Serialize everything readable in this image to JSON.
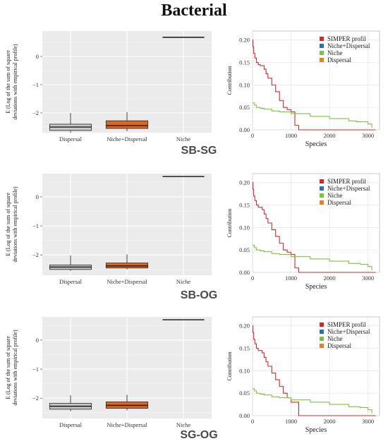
{
  "title": "Bacterial",
  "legend_labels": [
    "SIMPER profil",
    "Niche+Dispersal",
    "Niche",
    "Dispersal"
  ],
  "legend_colors": [
    "#d62728",
    "#2a6ebb",
    "#7cc242",
    "#e8801e"
  ],
  "box_fill_colors": {
    "Dispersal": "#c8c8c8",
    "Niche+Dispersal": "#e0661f"
  },
  "panels": [
    {
      "label": "SB-SG"
    },
    {
      "label": "SB-OG"
    },
    {
      "label": "SG-OG"
    }
  ],
  "chart_data": [
    {
      "type": "box",
      "panel": "SB-SG",
      "ylabel": "E (Log of the sum of square deviations with empirical profile)",
      "categories": [
        "Dispersal",
        "Niche+Dispersal",
        "Niche"
      ],
      "ylim": [
        -2.7,
        0.9
      ],
      "yticks": [
        0,
        -1,
        -2
      ],
      "boxes": [
        {
          "category": "Dispersal",
          "whisker_low": -2.7,
          "q1": -2.62,
          "median": -2.5,
          "q3": -2.4,
          "whisker_high": -2.0
        },
        {
          "category": "Niche+Dispersal",
          "whisker_low": -2.65,
          "q1": -2.55,
          "median": -2.45,
          "q3": -2.28,
          "whisker_high": -1.97
        },
        {
          "category": "Niche",
          "whisker_low": 0.68,
          "q1": 0.68,
          "median": 0.68,
          "q3": 0.68,
          "whisker_high": 0.68
        }
      ]
    },
    {
      "type": "line",
      "panel": "SB-SG",
      "xlabel": "Species",
      "ylabel": "Contribution",
      "xlim": [
        0,
        3300
      ],
      "ylim": [
        0,
        0.22
      ],
      "xticks": [
        0,
        1000,
        2000,
        3000
      ],
      "yticks": [
        0.0,
        0.05,
        0.1,
        0.15,
        0.2
      ],
      "series": [
        {
          "name": "SIMPER profil",
          "x": [
            0,
            10,
            30,
            60,
            100,
            150,
            200,
            300,
            350,
            400,
            500,
            600,
            700,
            800,
            900,
            1000,
            1100,
            1200,
            2000,
            3000,
            3200
          ],
          "y": [
            0.2,
            0.185,
            0.17,
            0.16,
            0.15,
            0.145,
            0.143,
            0.135,
            0.125,
            0.115,
            0.1,
            0.085,
            0.065,
            0.05,
            0.045,
            0.04,
            0.01,
            0.0,
            0.0,
            0.0,
            0.0
          ]
        },
        {
          "name": "Niche",
          "x": [
            0,
            50,
            100,
            200,
            300,
            500,
            700,
            1000,
            1500,
            2000,
            2500,
            2700,
            3000,
            3100
          ],
          "y": [
            0.06,
            0.055,
            0.05,
            0.048,
            0.046,
            0.042,
            0.04,
            0.036,
            0.03,
            0.025,
            0.02,
            0.018,
            0.013,
            0.005
          ]
        }
      ]
    },
    {
      "type": "box",
      "panel": "SB-OG",
      "ylabel": "E (Log of the sum of square deviations with empirical profile)",
      "categories": [
        "Dispersal",
        "Niche+Dispersal",
        "Niche"
      ],
      "ylim": [
        -2.7,
        0.8
      ],
      "yticks": [
        0,
        -1,
        -2
      ],
      "boxes": [
        {
          "category": "Dispersal",
          "whisker_low": -2.55,
          "q1": -2.5,
          "median": -2.42,
          "q3": -2.35,
          "whisker_high": -2.02
        },
        {
          "category": "Niche+Dispersal",
          "whisker_low": -2.5,
          "q1": -2.45,
          "median": -2.38,
          "q3": -2.28,
          "whisker_high": -1.98
        },
        {
          "category": "Niche",
          "whisker_low": 0.7,
          "q1": 0.7,
          "median": 0.7,
          "q3": 0.7,
          "whisker_high": 0.7
        }
      ]
    },
    {
      "type": "line",
      "panel": "SB-OG",
      "xlabel": "Species",
      "ylabel": "Contribution",
      "xlim": [
        0,
        3300
      ],
      "ylim": [
        0,
        0.22
      ],
      "xticks": [
        0,
        1000,
        2000,
        3000
      ],
      "yticks": [
        0.0,
        0.05,
        0.1,
        0.15,
        0.2
      ],
      "series": [
        {
          "name": "SIMPER profil",
          "x": [
            0,
            10,
            30,
            60,
            100,
            150,
            250,
            300,
            350,
            400,
            500,
            600,
            700,
            800,
            900,
            1000,
            1100,
            1200,
            2000,
            3000,
            3200
          ],
          "y": [
            0.2,
            0.185,
            0.17,
            0.16,
            0.15,
            0.145,
            0.14,
            0.13,
            0.12,
            0.11,
            0.095,
            0.08,
            0.065,
            0.05,
            0.045,
            0.04,
            0.01,
            0.0,
            0.0,
            0.0,
            0.0
          ]
        },
        {
          "name": "Niche",
          "x": [
            0,
            50,
            100,
            200,
            300,
            500,
            700,
            1000,
            1500,
            2000,
            2500,
            2800,
            3000,
            3100
          ],
          "y": [
            0.06,
            0.055,
            0.05,
            0.048,
            0.046,
            0.042,
            0.04,
            0.035,
            0.03,
            0.025,
            0.02,
            0.018,
            0.013,
            0.005
          ]
        }
      ]
    },
    {
      "type": "box",
      "panel": "SG-OG",
      "ylabel": "E (Log of the sum of square deviations with empirical profile)",
      "categories": [
        "Dispersal",
        "Niche+Dispersal",
        "Niche"
      ],
      "ylim": [
        -2.7,
        0.8
      ],
      "yticks": [
        0,
        -1,
        -2
      ],
      "boxes": [
        {
          "category": "Dispersal",
          "whisker_low": -2.45,
          "q1": -2.38,
          "median": -2.28,
          "q3": -2.18,
          "whisker_high": -1.9
        },
        {
          "category": "Niche+Dispersal",
          "whisker_low": -2.42,
          "q1": -2.35,
          "median": -2.25,
          "q3": -2.13,
          "whisker_high": -1.88
        },
        {
          "category": "Niche",
          "whisker_low": 0.7,
          "q1": 0.7,
          "median": 0.7,
          "q3": 0.7,
          "whisker_high": 0.7
        }
      ]
    },
    {
      "type": "line",
      "panel": "SG-OG",
      "xlabel": "Species",
      "ylabel": "Contribution",
      "xlim": [
        0,
        3300
      ],
      "ylim": [
        0,
        0.22
      ],
      "xticks": [
        0,
        1000,
        2000,
        3000
      ],
      "yticks": [
        0.0,
        0.05,
        0.1,
        0.15,
        0.2
      ],
      "series": [
        {
          "name": "SIMPER profil",
          "x": [
            0,
            10,
            30,
            60,
            100,
            150,
            250,
            300,
            350,
            400,
            500,
            600,
            700,
            800,
            900,
            1000,
            1100,
            1200,
            2000,
            3000,
            3200
          ],
          "y": [
            0.2,
            0.185,
            0.17,
            0.16,
            0.15,
            0.145,
            0.14,
            0.13,
            0.12,
            0.11,
            0.095,
            0.08,
            0.065,
            0.05,
            0.04,
            0.03,
            0.03,
            0.0,
            0.0,
            0.0,
            0.0
          ]
        },
        {
          "name": "Niche",
          "x": [
            0,
            50,
            100,
            200,
            300,
            500,
            700,
            1000,
            1500,
            2000,
            2500,
            2800,
            3000,
            3100
          ],
          "y": [
            0.06,
            0.055,
            0.05,
            0.048,
            0.046,
            0.042,
            0.04,
            0.035,
            0.03,
            0.025,
            0.02,
            0.018,
            0.013,
            0.005
          ]
        }
      ]
    }
  ]
}
